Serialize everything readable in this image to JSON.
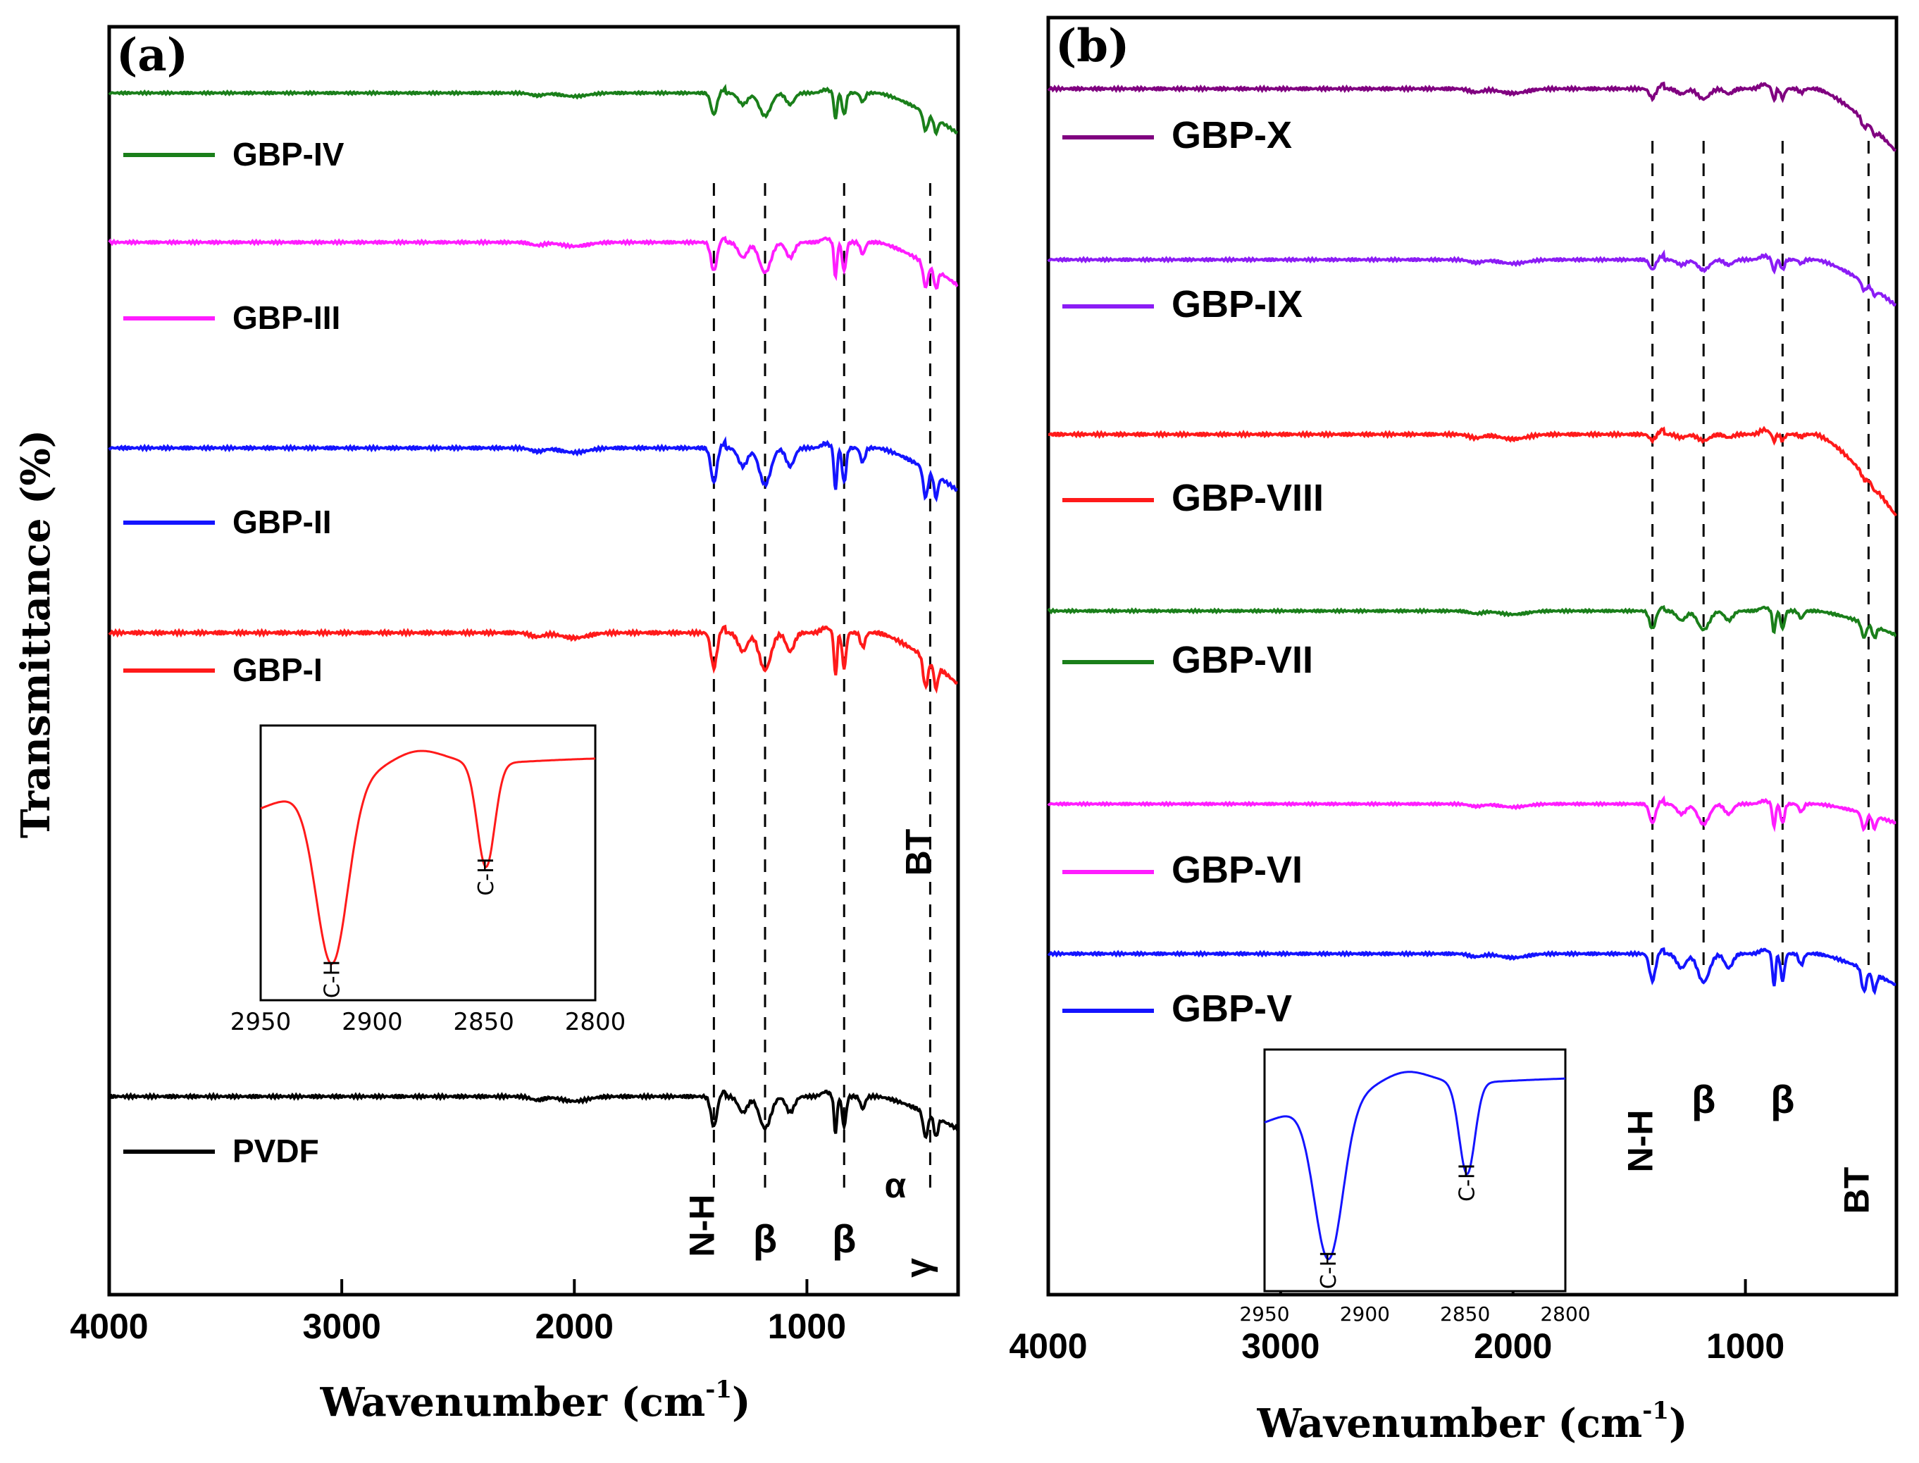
{
  "chart_data": [
    {
      "panel": "(a)",
      "type": "line",
      "xlabel": "Wavenumber (cm",
      "xlabel_sup": "-1",
      "xlabel_close": ")",
      "ylabel": "Transmittance (%)",
      "xlim": [
        4000,
        350
      ],
      "xticks": [
        "4000",
        "3000",
        "2000",
        "1000"
      ],
      "xtick_values": [
        4000,
        3000,
        2000,
        1000
      ],
      "series": [
        {
          "name": "GBP-IV",
          "color": "#1a7f1a",
          "baseline": 0.9,
          "depth": 0.15,
          "tail": 0.24
        },
        {
          "name": "GBP-III",
          "color": "#ff1dff",
          "baseline": 0.9,
          "depth": 0.17,
          "tail": 0.22
        },
        {
          "name": "GBP-II",
          "color": "#1414ff",
          "baseline": 0.9,
          "depth": 0.18,
          "tail": 0.19
        },
        {
          "name": "GBP-I",
          "color": "#ff1a1a",
          "baseline": 0.9,
          "depth": 0.16,
          "tail": 0.2
        },
        {
          "name": "PVDF",
          "color": "#000000",
          "baseline": 0.9,
          "depth": 0.15,
          "tail": 0.14
        }
      ],
      "reference_lines": [
        {
          "wavenumber": 1400
        },
        {
          "wavenumber": 1180
        },
        {
          "wavenumber": 840
        },
        {
          "wavenumber": 470
        }
      ],
      "band_labels": [
        {
          "text": "N-H",
          "wavenumber": 1400
        },
        {
          "text": "β",
          "wavenumber": 1180
        },
        {
          "text": "β",
          "wavenumber": 840
        },
        {
          "text": "α",
          "wavenumber": 620
        },
        {
          "text": "γ",
          "wavenumber": 470
        },
        {
          "text": "BT",
          "wavenumber": 470
        }
      ],
      "inset": {
        "color": "#ff1a1a",
        "xlim": [
          2950,
          2800
        ],
        "xticks": [
          "2950",
          "2900",
          "2850",
          "2800"
        ],
        "xtick_values": [
          2950,
          2900,
          2850,
          2800
        ],
        "peaks": [
          {
            "label": "C-H",
            "wavenumber": 2918
          },
          {
            "label": "C-H",
            "wavenumber": 2849
          }
        ]
      }
    },
    {
      "panel": "(b)",
      "type": "line",
      "xlabel": "Wavenumber (cm",
      "xlabel_sup": "-1",
      "xlabel_close": ")",
      "ylabel": "",
      "xlim": [
        4000,
        350
      ],
      "xticks": [
        "4000",
        "3000",
        "2000",
        "1000"
      ],
      "xtick_values": [
        4000,
        3000,
        2000,
        1000
      ],
      "series": [
        {
          "name": "GBP-X",
          "color": "#800080",
          "baseline": 0.9,
          "depth": 0.05,
          "tail": 0.28
        },
        {
          "name": "GBP-IX",
          "color": "#8b1cf5",
          "baseline": 0.9,
          "depth": 0.06,
          "tail": 0.24
        },
        {
          "name": "GBP-VIII",
          "color": "#ff1a1a",
          "baseline": 0.9,
          "depth": 0.03,
          "tail": 0.35
        },
        {
          "name": "GBP-VII",
          "color": "#1a7f1a",
          "baseline": 0.9,
          "depth": 0.12,
          "tail": 0.14
        },
        {
          "name": "GBP-VI",
          "color": "#ff1dff",
          "baseline": 0.9,
          "depth": 0.14,
          "tail": 0.12
        },
        {
          "name": "GBP-V",
          "color": "#1414ff",
          "baseline": 0.9,
          "depth": 0.16,
          "tail": 0.16
        }
      ],
      "reference_lines": [
        {
          "wavenumber": 1400
        },
        {
          "wavenumber": 1180
        },
        {
          "wavenumber": 840
        },
        {
          "wavenumber": 470
        }
      ],
      "band_labels": [
        {
          "text": "N-H",
          "wavenumber": 1400
        },
        {
          "text": "β",
          "wavenumber": 1180
        },
        {
          "text": "β",
          "wavenumber": 840
        },
        {
          "text": "BT",
          "wavenumber": 470
        }
      ],
      "inset": {
        "color": "#1414ff",
        "xlim": [
          2950,
          2800
        ],
        "xticks": [
          "2950",
          "2900",
          "2850",
          "2800"
        ],
        "xtick_values": [
          2950,
          2900,
          2850,
          2800
        ],
        "peaks": [
          {
            "label": "C-H",
            "wavenumber": 2918
          },
          {
            "label": "C-H",
            "wavenumber": 2849
          }
        ]
      }
    }
  ]
}
